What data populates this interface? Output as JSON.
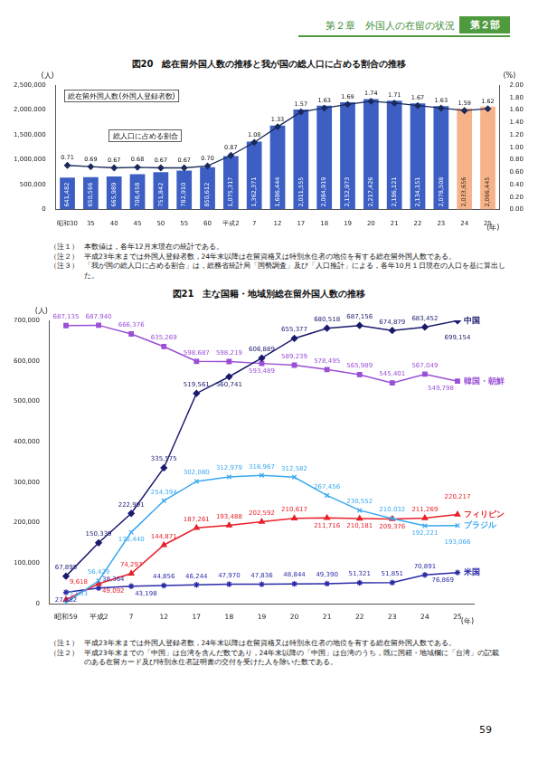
{
  "header": {
    "chapter": "第２章　外国人の在留の状況",
    "part": "第２部"
  },
  "chart_data": [
    {
      "type": "bar",
      "title": "図20　総在留外国人数の推移と我が国の総人口に占める割合の推移",
      "categories": [
        "昭和30",
        "35",
        "40",
        "45",
        "50",
        "55",
        "60",
        "平成2",
        "7",
        "12",
        "17",
        "18",
        "19",
        "20",
        "21",
        "22",
        "23",
        "24",
        "25"
      ],
      "x_label": "(年)",
      "y_label": "(人)",
      "y2_label": "(%)",
      "ylim": [
        0,
        2500000
      ],
      "yticks": [
        0,
        {
          "value": 500000,
          "label": "500,000"
        },
        {
          "value": 1000000,
          "label": "1,000,000"
        },
        {
          "value": 1500000,
          "label": "1,500,000"
        },
        {
          "value": 2000000,
          "label": "2,000,000"
        },
        {
          "value": 2500000,
          "label": "2,500,000"
        }
      ],
      "y2lim": [
        0,
        2
      ],
      "y2ticks": [
        {
          "value": 0,
          "label": "0.00"
        },
        {
          "value": 0.2,
          "label": "0.20"
        },
        {
          "value": 0.4,
          "label": "0.40"
        },
        {
          "value": 0.6,
          "label": "0.60"
        },
        {
          "value": 0.8,
          "label": "0.80"
        },
        {
          "value": 1,
          "label": "1.00"
        },
        {
          "value": 1.2,
          "label": "1.20"
        },
        {
          "value": 1.4,
          "label": "1.40"
        },
        {
          "value": 1.6,
          "label": "1.60"
        },
        {
          "value": 1.8,
          "label": "1.80"
        },
        {
          "value": 2,
          "label": "2.00"
        }
      ],
      "grid": false,
      "data_labels": true,
      "series": [
        {
          "name": "総在留外国人数(外国人登録者数)",
          "type": "bar",
          "colors": [
            "#3d5fc4",
            "#3d5fc4",
            "#3d5fc4",
            "#3d5fc4",
            "#3d5fc4",
            "#3d5fc4",
            "#3d5fc4",
            "#3d5fc4",
            "#3d5fc4",
            "#3d5fc4",
            "#3d5fc4",
            "#3d5fc4",
            "#3d5fc4",
            "#3d5fc4",
            "#3d5fc4",
            "#3d5fc4",
            "#3d5fc4",
            "#f6b38a",
            "#f6b38a"
          ],
          "values": [
            641482,
            650566,
            665989,
            708458,
            751842,
            782910,
            850612,
            1075317,
            1362371,
            1686444,
            2011555,
            2084919,
            2152973,
            2217426,
            2186121,
            2134151,
            2078508,
            2033656,
            2066445
          ],
          "value_labels": [
            "641,482",
            "650,566",
            "665,989",
            "708,458",
            "751,842",
            "782,910",
            "850,612",
            "1,075,317",
            "1,362,371",
            "1,686,444",
            "2,011,555",
            "2,084,919",
            "2,152,973",
            "2,217,426",
            "2,186,121",
            "2,134,151",
            "2,078,508",
            "2,033,656",
            "2,066,445"
          ]
        },
        {
          "name": "総人口に占める割合",
          "type": "line",
          "axis": "y2",
          "color": "#1a2a5a",
          "marker": "diamond",
          "values": [
            0.71,
            0.69,
            0.67,
            0.68,
            0.67,
            0.67,
            0.7,
            0.87,
            1.08,
            1.33,
            1.57,
            1.63,
            1.69,
            1.74,
            1.71,
            1.67,
            1.63,
            1.59,
            1.62
          ],
          "value_labels": [
            "0.71",
            "0.69",
            "0.67",
            "0.68",
            "0.67",
            "0.67",
            "0.70",
            "0.87",
            "1.08",
            "1.33",
            "1.57",
            "1.63",
            "1.69",
            "1.74",
            "1.71",
            "1.67",
            "1.63",
            "1.59",
            "1.62"
          ]
        }
      ]
    },
    {
      "type": "line",
      "title": "図21　主な国籍・地域別総在留外国人数の推移",
      "categories": [
        "昭和59",
        "平成2",
        "7",
        "12",
        "17",
        "18",
        "19",
        "20",
        "21",
        "22",
        "23",
        "24",
        "25"
      ],
      "x_label": "(年)",
      "y_label": "(人)",
      "ylim": [
        0,
        700000
      ],
      "yticks": [
        0,
        {
          "value": 100000,
          "label": "100,000"
        },
        {
          "value": 200000,
          "label": "200,000"
        },
        {
          "value": 300000,
          "label": "300,000"
        },
        {
          "value": 400000,
          "label": "400,000"
        },
        {
          "value": 500000,
          "label": "500,000"
        },
        {
          "value": 600000,
          "label": "600,000"
        },
        {
          "value": 700000,
          "label": "700,000"
        }
      ],
      "grid": false,
      "data_labels": true,
      "series": [
        {
          "name": "中国",
          "color": "#1a1a6e",
          "marker": "diamond",
          "values": [
            67895,
            150339,
            222991,
            335575,
            519561,
            560741,
            606889,
            655377,
            680518,
            687156,
            674879,
            683452,
            699154
          ],
          "value_labels": [
            "67,895",
            "150,339",
            "222,991",
            "335,575",
            "519,561",
            "560,741",
            "606,889",
            "655,377",
            "680,518",
            "687,156",
            "674,879",
            "683,452",
            "699,154"
          ]
        },
        {
          "name": "韓国・朝鮮",
          "color": "#9a4fd6",
          "marker": "square",
          "values": [
            687135,
            687940,
            666376,
            635269,
            598687,
            598219,
            593489,
            589239,
            578495,
            565989,
            545401,
            567049,
            549798
          ],
          "value_labels": [
            "687,135",
            "687,940",
            "666,376",
            "635,269",
            "598,687",
            "598,219",
            "593,489",
            "589,239",
            "578,495",
            "565,989",
            "545,401",
            "567,049",
            "549,798"
          ]
        },
        {
          "name": "ブラジル",
          "color": "#3aa8f0",
          "marker": "x",
          "values": [
            1953,
            56429,
            176440,
            254394,
            302080,
            312979,
            316967,
            312582,
            267456,
            230552,
            210032,
            192221,
            193066
          ],
          "value_labels": [
            "1,953",
            "56,429",
            "176,440",
            "254,394",
            "302,080",
            "312,979",
            "316,967",
            "312,582",
            "267,456",
            "230,552",
            "210,032",
            "192,221",
            "193,066"
          ]
        },
        {
          "name": "フィリピン",
          "color": "#e8202a",
          "marker": "triangle",
          "values": [
            9618,
            49092,
            74297,
            144871,
            187261,
            193488,
            202592,
            210617,
            211716,
            210181,
            209376,
            211269,
            220217
          ],
          "value_labels": [
            "9,618",
            "49,092",
            "74,297",
            "144,871",
            "187,261",
            "193,488",
            "202,592",
            "210,617",
            "211,716",
            "210,181",
            "209,376",
            "211,269",
            "220,217"
          ]
        },
        {
          "name": "米国",
          "color": "#2a2aa8",
          "marker": "star",
          "values": [
            27882,
            38364,
            43198,
            44856,
            46244,
            47970,
            47836,
            48844,
            49390,
            51321,
            51851,
            70891,
            76869
          ],
          "value_labels": [
            "27,882",
            "38,364",
            "43,198",
            "44,856",
            "46,244",
            "47,970",
            "47,836",
            "48,844",
            "49,390",
            "51,321",
            "51,851",
            "70,891",
            "76,869"
          ]
        }
      ]
    }
  ],
  "notes": [
    [
      {
        "label": "（注１）",
        "text": "本数値は，各年12月末現在の統計である。"
      },
      {
        "label": "（注２）",
        "text": "平成23年末までは外国人登録者数，24年末以降は在留資格又は特別永住者の地位を有する総在留外国人数である。"
      },
      {
        "label": "（注３）",
        "text": "「我が国の総人口に占める割合」は，総務省統計局「国勢調査」及び「人口推計」による，各年10月１日現在の人口を基に算出した。"
      }
    ],
    [
      {
        "label": "（注１）",
        "text": "平成23年末までは外国人登録者数，24年末以降は在留資格又は特別永住者の地位を有する総在留外国人数である。"
      },
      {
        "label": "（注２）",
        "text": "平成23年末までの「中国」は台湾を含んだ数であり，24年末以降の「中国」は台湾のうち，既に国籍・地域欄に「台湾」の記載のある在留カード及び特別永住者証明書の交付を受けた人を除いた数である。"
      }
    ]
  ],
  "page_number": "59"
}
